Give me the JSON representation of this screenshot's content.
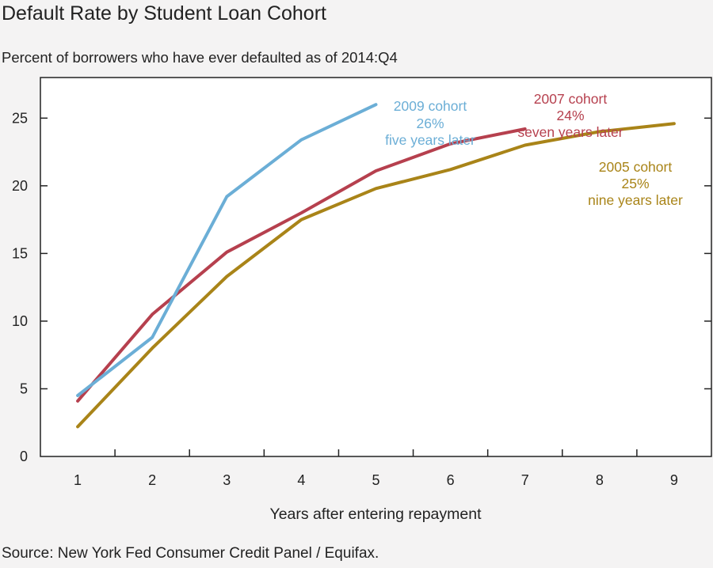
{
  "chart_data": {
    "type": "line",
    "title": "Default Rate by Student Loan Cohort",
    "subtitle": "Percent of borrowers who have ever defaulted as of 2014:Q4",
    "xlabel": "Years after entering repayment",
    "ylabel": "",
    "source": "Source: New York Fed Consumer Credit Panel / Equifax.",
    "x": [
      1,
      2,
      3,
      4,
      5,
      6,
      7,
      8,
      9
    ],
    "x_ticks": [
      "1",
      "2",
      "3",
      "4",
      "5",
      "6",
      "7",
      "8",
      "9"
    ],
    "y_ticks": [
      "0",
      "5",
      "10",
      "15",
      "20",
      "25"
    ],
    "ylim": [
      0,
      28
    ],
    "xlim": [
      0.5,
      9.5
    ],
    "grid": false,
    "legend": "none",
    "series": [
      {
        "cohort": "2005",
        "color": "#a98418",
        "x": [
          1,
          2,
          3,
          4,
          5,
          6,
          7,
          8,
          9
        ],
        "values": [
          2.2,
          8.0,
          13.3,
          17.5,
          19.8,
          21.2,
          23.0,
          24.0,
          24.6
        ]
      },
      {
        "cohort": "2007",
        "color": "#b6404e",
        "x": [
          1,
          2,
          3,
          4,
          5,
          6,
          7
        ],
        "values": [
          4.1,
          10.5,
          15.1,
          18.0,
          21.1,
          23.1,
          24.2
        ]
      },
      {
        "cohort": "2009",
        "color": "#6baed6",
        "x": [
          1,
          2,
          3,
          4,
          5
        ],
        "values": [
          4.5,
          8.8,
          19.2,
          23.4,
          26.0
        ]
      }
    ],
    "annotations": [
      {
        "lines": [
          "2009 cohort",
          "26%",
          "five years later"
        ],
        "color": "#6baed6"
      },
      {
        "lines": [
          "2007 cohort",
          "24%",
          "seven years later"
        ],
        "color": "#b6404e"
      },
      {
        "lines": [
          "2005 cohort",
          "25%",
          "nine years later"
        ],
        "color": "#a98418"
      }
    ]
  }
}
